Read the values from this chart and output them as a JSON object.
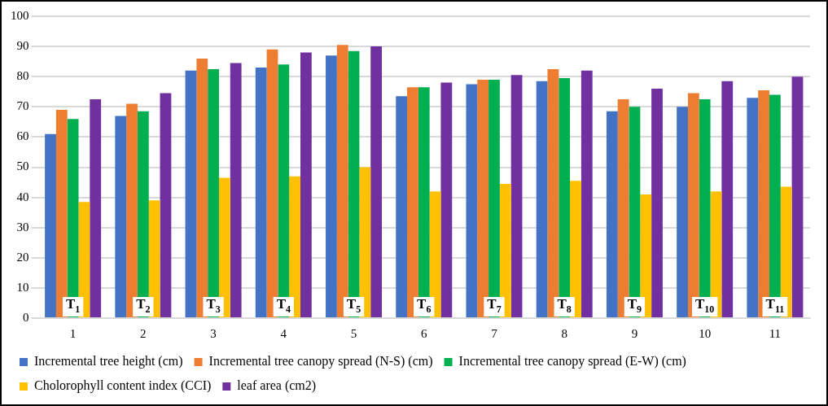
{
  "chart_data": {
    "type": "bar",
    "categories": [
      "1",
      "2",
      "3",
      "4",
      "5",
      "6",
      "7",
      "8",
      "9",
      "10",
      "11"
    ],
    "series": [
      {
        "name": "Incremental tree height (cm)",
        "color": "#4472c4",
        "values": [
          61,
          67,
          82,
          83,
          87,
          73.5,
          77.5,
          78.5,
          68.5,
          70,
          73
        ]
      },
      {
        "name": "Incremental tree canopy spread (N-S) (cm)",
        "color": "#ed7d31",
        "values": [
          69,
          71,
          86,
          89,
          90.5,
          76.5,
          79,
          82.5,
          72.5,
          74.5,
          75.5
        ]
      },
      {
        "name": "Incremental tree canopy spread (E-W) (cm)",
        "color": "#00b050",
        "values": [
          66,
          68.5,
          82.5,
          84,
          88.5,
          76.5,
          79,
          79.5,
          70,
          72.5,
          74
        ]
      },
      {
        "name": "Cholorophyll content index (CCI)",
        "color": "#ffc000",
        "values": [
          38.5,
          39,
          46.5,
          47,
          50,
          42,
          44.5,
          45.5,
          41,
          42,
          43.5
        ]
      },
      {
        "name": "leaf area (cm2)",
        "color": "#7030a0",
        "values": [
          72.5,
          74.5,
          84.5,
          88,
          90,
          78,
          80.5,
          82,
          76,
          78.5,
          80
        ]
      }
    ],
    "ylim": [
      0,
      100
    ],
    "yticks": [
      0,
      10,
      20,
      30,
      40,
      50,
      60,
      70,
      80,
      90,
      100
    ],
    "grid": "y",
    "legend": "bottom",
    "annotations": [
      "T$_{1}$",
      "T$_{2}$",
      "T$_{3}$",
      "T$_{4}$",
      "T$_{5}$",
      "T$_{6}$",
      "T$_{7}$",
      "T$_{8}$",
      "T$_{9}$",
      "T$_{10}$",
      "T$_{11}$"
    ]
  }
}
